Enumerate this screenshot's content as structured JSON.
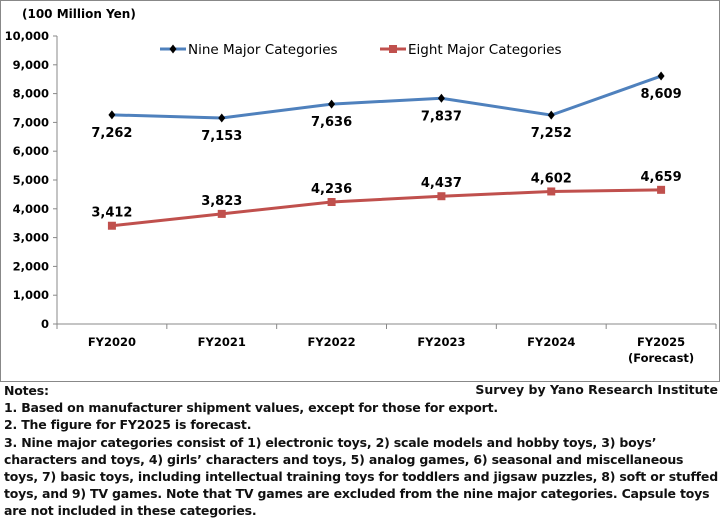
{
  "chart_data": {
    "type": "line",
    "unit_label": "(100 Million Yen)",
    "categories": [
      "FY2020",
      "FY2021",
      "FY2022",
      "FY2023",
      "FY2024",
      "FY2025"
    ],
    "category_sublabels": [
      "",
      "",
      "",
      "",
      "",
      "(Forecast)"
    ],
    "ylim": [
      0,
      10000
    ],
    "yticks": [
      "0",
      "1,000",
      "2,000",
      "3,000",
      "4,000",
      "5,000",
      "6,000",
      "7,000",
      "8,000",
      "9,000",
      "10,000"
    ],
    "grid": false,
    "legend": "top",
    "series": [
      {
        "name": "Nine Major Categories",
        "values": [
          7262,
          7153,
          7636,
          7837,
          7252,
          8609
        ],
        "labels": [
          "7,262",
          "7,153",
          "7,636",
          "7,837",
          "7,252",
          "8,609"
        ],
        "color": "#4f81bd",
        "marker": "diamond",
        "marker_color": "#000000"
      },
      {
        "name": "Eight Major Categories",
        "values": [
          3412,
          3823,
          4236,
          4437,
          4602,
          4659
        ],
        "labels": [
          "3,412",
          "3,823",
          "4,236",
          "4,437",
          "4,602",
          "4,659"
        ],
        "color": "#c0504d",
        "marker": "square",
        "marker_color": "#c0504d"
      }
    ]
  },
  "notes": {
    "heading": "Notes:",
    "source": "Survey by Yano Research Institute",
    "items": [
      "1. Based on manufacturer shipment values, except for those for export.",
      "2. The figure for FY2025 is forecast.",
      "3. Nine major categories consist of 1) electronic toys, 2) scale models and hobby toys, 3) boys’ characters and toys, 4) girls’ characters and toys, 5) analog games, 6) seasonal and miscellaneous toys, 7) basic toys, including intellectual training toys for toddlers and jigsaw puzzles, 8) soft or stuffed toys, and 9) TV games. Note that TV games are excluded from the nine major categories. Capsule toys are not included in these categories."
    ]
  }
}
